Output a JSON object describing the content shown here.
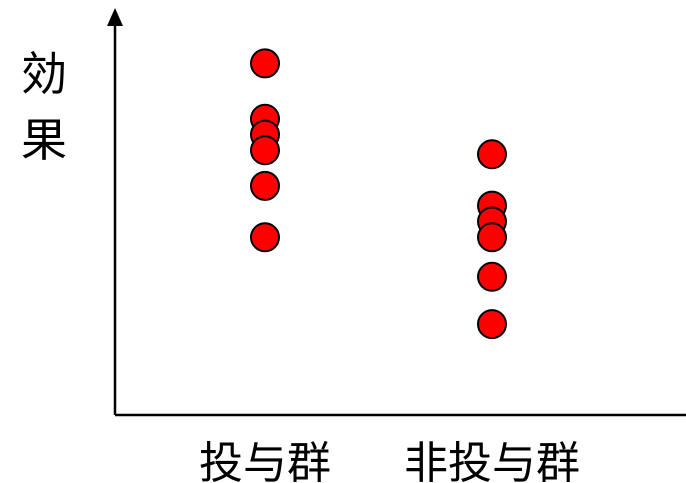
{
  "chart_data": {
    "type": "scatter",
    "ylabel": "効果",
    "categories": [
      "投与群",
      "非投与群"
    ],
    "series": [
      {
        "category": "投与群",
        "values": [
          89,
          75,
          71,
          67,
          58,
          45
        ]
      },
      {
        "category": "非投与群",
        "values": [
          66,
          53,
          49,
          45,
          35,
          23
        ]
      }
    ],
    "ylim": [
      0,
      100
    ],
    "grid": false,
    "legend": "none",
    "point_color": "#ff0000"
  }
}
